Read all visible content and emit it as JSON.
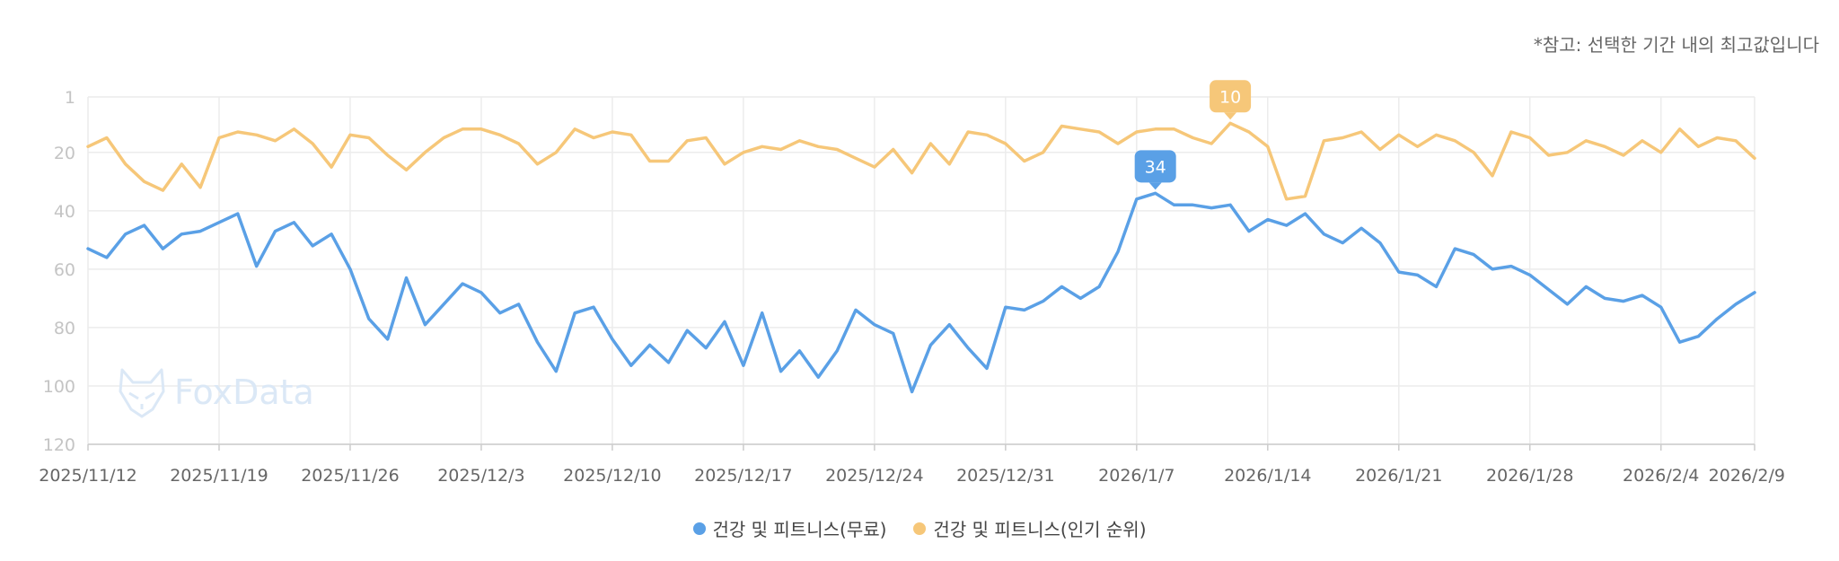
{
  "note": "*참고: 선택한 기간 내의 최고값입니다",
  "watermark": "FoxData",
  "chart_data": {
    "type": "line",
    "y_inverted": true,
    "ylim": [
      1,
      120
    ],
    "y_ticks": [
      "1",
      "20",
      "40",
      "60",
      "80",
      "100",
      "120"
    ],
    "y_tick_values": [
      1,
      20,
      40,
      60,
      80,
      100,
      120
    ],
    "x_range": [
      "2025/11/12",
      "2026/2/9"
    ],
    "x_ticks": [
      "2025/11/12",
      "2025/11/19",
      "2025/11/26",
      "2025/12/3",
      "2025/12/10",
      "2025/12/17",
      "2025/12/24",
      "2025/12/31",
      "2026/1/7",
      "2026/1/14",
      "2026/1/21",
      "2026/1/28",
      "2026/2/4",
      "2026/2/9"
    ],
    "grid": true,
    "legend_position": "bottom",
    "series": [
      {
        "name": "건강 및 피트니스(무료)",
        "color": "#5aa0e6",
        "values": [
          53,
          56,
          48,
          45,
          53,
          48,
          47,
          44,
          41,
          59,
          47,
          44,
          52,
          48,
          60,
          77,
          84,
          63,
          79,
          72,
          65,
          68,
          75,
          72,
          85,
          95,
          75,
          73,
          84,
          93,
          86,
          92,
          81,
          87,
          78,
          93,
          75,
          95,
          88,
          97,
          88,
          74,
          79,
          82,
          102,
          86,
          79,
          87,
          94,
          73,
          74,
          71,
          66,
          70,
          66,
          54,
          36,
          34,
          38,
          38,
          39,
          38,
          47,
          43,
          45,
          41,
          48,
          51,
          46,
          51,
          61,
          62,
          66,
          53,
          55,
          60,
          59,
          62,
          67,
          72,
          66,
          70,
          71,
          69,
          73,
          85,
          83,
          77,
          72,
          68
        ],
        "highlight": {
          "index": 57,
          "label": "34"
        }
      },
      {
        "name": "건강 및 피트니스(인기 순위)",
        "color": "#f6c779",
        "values": [
          18,
          15,
          24,
          30,
          33,
          24,
          32,
          15,
          13,
          14,
          16,
          12,
          17,
          25,
          14,
          15,
          21,
          26,
          20,
          15,
          12,
          12,
          14,
          17,
          24,
          20,
          12,
          15,
          13,
          14,
          23,
          23,
          16,
          15,
          24,
          20,
          18,
          19,
          16,
          18,
          19,
          22,
          25,
          19,
          27,
          17,
          24,
          13,
          14,
          17,
          23,
          20,
          11,
          12,
          13,
          17,
          13,
          12,
          12,
          15,
          17,
          10,
          13,
          18,
          36,
          35,
          16,
          15,
          13,
          19,
          14,
          18,
          14,
          16,
          20,
          28,
          13,
          15,
          21,
          20,
          16,
          18,
          21,
          16,
          20,
          12,
          18,
          15,
          16,
          22
        ],
        "highlight": {
          "index": 61,
          "label": "10"
        }
      }
    ]
  }
}
